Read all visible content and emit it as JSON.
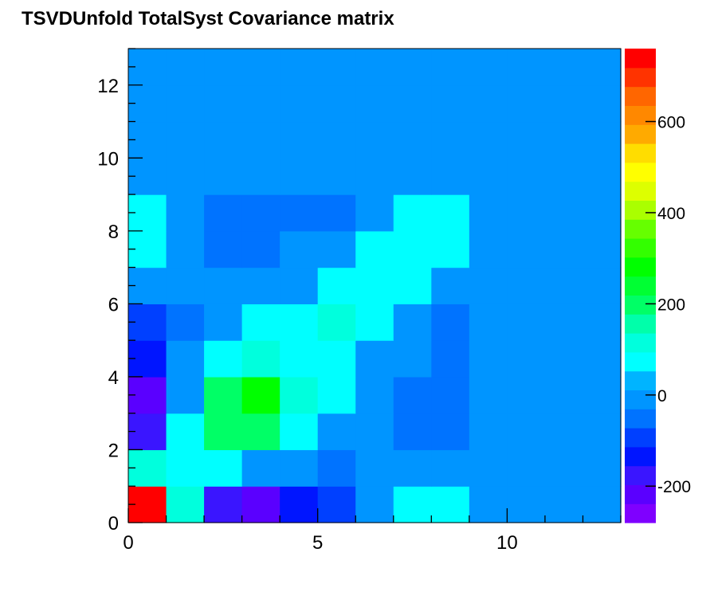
{
  "chart_data": {
    "type": "heatmap",
    "title": "TSVDUnfold TotalSyst Covariance matrix",
    "xlim": [
      0,
      13
    ],
    "ylim": [
      0,
      13
    ],
    "zlim": [
      -280,
      760
    ],
    "x_ticks": [
      0,
      5,
      10
    ],
    "y_ticks": [
      0,
      2,
      4,
      6,
      8,
      10,
      12
    ],
    "z_ticks": [
      -200,
      0,
      200,
      400,
      600
    ],
    "palette": [
      "#7f00ff",
      "#5a00ff",
      "#3a15ff",
      "#0015ff",
      "#0040ff",
      "#0073ff",
      "#0095ff",
      "#00b4ff",
      "#00ffff",
      "#00ffdd",
      "#00ffaa",
      "#00ff66",
      "#00ff33",
      "#00ff00",
      "#33ff00",
      "#66ff00",
      "#aaff00",
      "#ddff00",
      "#ffff00",
      "#ffdd00",
      "#ffaa00",
      "#ff8800",
      "#ff6600",
      "#ff3300",
      "#ff0000"
    ],
    "rows_bottom_to_top": [
      [
        760,
        110,
        -180,
        -230,
        -150,
        -90,
        0,
        60,
        60,
        0,
        0,
        0,
        0
      ],
      [
        110,
        60,
        60,
        0,
        0,
        -50,
        0,
        0,
        0,
        0,
        0,
        0,
        0
      ],
      [
        -180,
        60,
        200,
        200,
        60,
        0,
        0,
        -40,
        -40,
        0,
        0,
        0,
        0
      ],
      [
        -230,
        0,
        200,
        280,
        120,
        60,
        0,
        -40,
        -40,
        0,
        0,
        0,
        0
      ],
      [
        -150,
        0,
        60,
        120,
        60,
        60,
        0,
        0,
        -40,
        0,
        0,
        0,
        0
      ],
      [
        -90,
        -50,
        0,
        60,
        60,
        120,
        60,
        0,
        -40,
        0,
        0,
        0,
        0
      ],
      [
        0,
        0,
        0,
        0,
        0,
        60,
        60,
        60,
        0,
        0,
        0,
        0,
        0
      ],
      [
        60,
        0,
        -40,
        -40,
        0,
        0,
        60,
        60,
        60,
        0,
        0,
        0,
        0
      ],
      [
        60,
        0,
        -40,
        -40,
        -40,
        -40,
        0,
        60,
        60,
        0,
        0,
        0,
        0
      ],
      [
        0,
        0,
        0,
        0,
        0,
        0,
        0,
        0,
        0,
        0,
        0,
        0,
        0
      ],
      [
        0,
        0,
        0,
        0,
        0,
        0,
        0,
        0,
        0,
        0,
        0,
        0,
        0
      ],
      [
        0,
        0,
        0,
        0,
        0,
        0,
        0,
        0,
        0,
        0,
        0,
        0,
        0
      ],
      [
        0,
        0,
        0,
        0,
        0,
        0,
        0,
        0,
        0,
        0,
        0,
        0,
        0
      ]
    ]
  }
}
